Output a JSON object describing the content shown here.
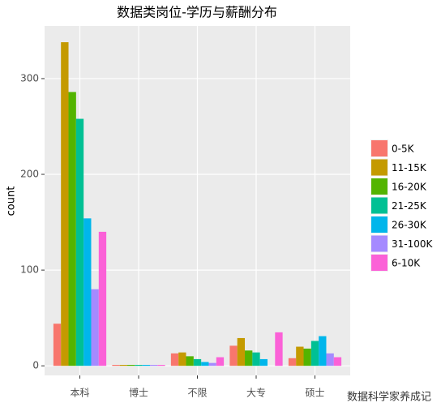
{
  "chart_data": {
    "type": "bar",
    "title": "数据类岗位-学历与薪酬分布",
    "y_label": "count",
    "categories": [
      "本科",
      "博士",
      "不限",
      "大专",
      "硕士"
    ],
    "series": [
      {
        "name": "0-5K",
        "color": "#F8766D",
        "values": [
          44,
          1,
          13,
          21,
          8
        ]
      },
      {
        "name": "11-15K",
        "color": "#C49A00",
        "values": [
          338,
          1,
          14,
          29,
          20
        ]
      },
      {
        "name": "16-20K",
        "color": "#53B400",
        "values": [
          286,
          1,
          10,
          16,
          18
        ]
      },
      {
        "name": "21-25K",
        "color": "#00C094",
        "values": [
          258,
          1,
          7,
          14,
          26
        ]
      },
      {
        "name": "26-30K",
        "color": "#00B6EB",
        "values": [
          154,
          1,
          4,
          7,
          31
        ]
      },
      {
        "name": "31-100K",
        "color": "#A58AFF",
        "values": [
          80,
          1,
          3,
          0,
          13
        ]
      },
      {
        "name": "6-10K",
        "color": "#FB61D7",
        "values": [
          140,
          1,
          9,
          35,
          9
        ]
      }
    ],
    "ylim": [
      -10,
      355
    ],
    "yticks": [
      0,
      100,
      200,
      300
    ],
    "grid": true,
    "legend": "right",
    "watermark": "数据科学家养成记"
  }
}
